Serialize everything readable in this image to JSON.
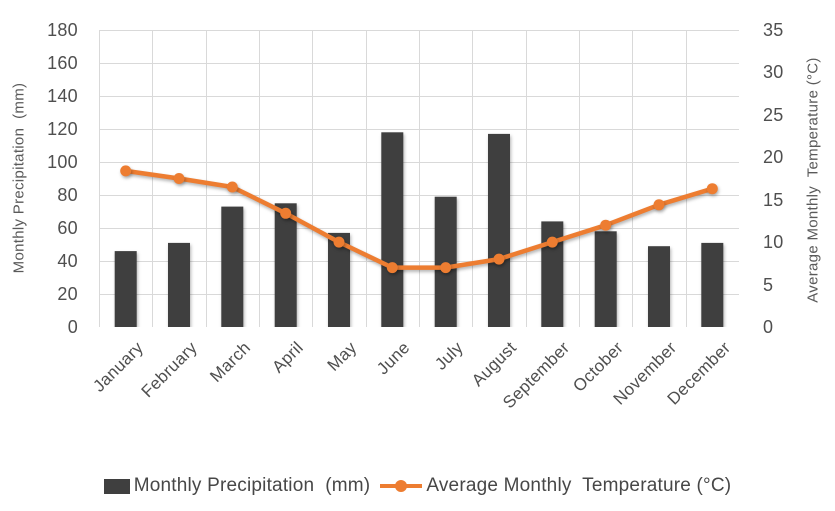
{
  "chart_data": {
    "type": "combo (bar + line)",
    "title": "",
    "categories": [
      "January",
      "February",
      "March",
      "April",
      "May",
      "June",
      "July",
      "August",
      "September",
      "October",
      "November",
      "December"
    ],
    "series": [
      {
        "name": "Monthly Precipitation  (mm)",
        "type": "bar",
        "axis": "left",
        "color": "#3F3F3F",
        "values": [
          46,
          51,
          73,
          75,
          57,
          118,
          79,
          117,
          64,
          58,
          49,
          51
        ]
      },
      {
        "name": "Average Monthly  Temperature (°C)",
        "type": "line",
        "axis": "right",
        "color": "#ED7D31",
        "values": [
          18.4,
          17.5,
          16.5,
          13.4,
          10,
          7,
          7,
          8,
          10,
          12,
          14.4,
          16.3
        ]
      }
    ],
    "left_axis": {
      "title": "Monthly Precipitation  (mm)",
      "min": 0,
      "max": 180,
      "step": 20
    },
    "right_axis": {
      "title": "Average Monthly  Temperature (°C)",
      "min": 0,
      "max": 35,
      "step": 5
    },
    "grid": "horizontal and vertical gridlines on",
    "legend_position": "bottom"
  },
  "colors": {
    "bar": "#3F3F3F",
    "line": "#ED7D31",
    "gridline": "#D9D9D9",
    "tick_text": "#4F4F4F",
    "background": "#FFFFFF"
  }
}
